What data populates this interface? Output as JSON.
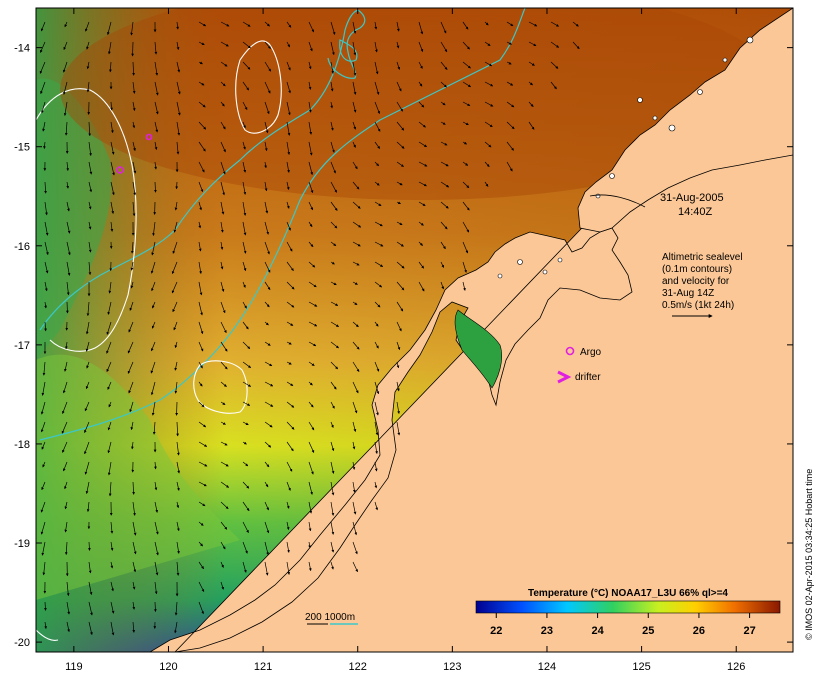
{
  "map": {
    "longitude_ticks": [
      "119",
      "120",
      "121",
      "122",
      "123",
      "124",
      "125",
      "126"
    ],
    "latitude_ticks": [
      "-14",
      "-15",
      "-16",
      "-17",
      "-18",
      "-19",
      "-20"
    ],
    "lon_range": [
      118.6,
      126.6
    ],
    "lat_range": [
      -20.1,
      -13.6
    ]
  },
  "annotations": {
    "date": "31-Aug-2005",
    "time": "14:40Z",
    "altimetry_lines": [
      "Altimetric sealevel",
      "(0.1m contours)",
      "and velocity for",
      "31-Aug 14Z",
      "0.5m/s (1kt 24h)"
    ],
    "argo_label": "Argo",
    "drifter_label": "drifter",
    "depth_contour_label": "200  1000m"
  },
  "colorbar": {
    "title": "Temperature (°C) NOAA17_L3U 66% ql>=4",
    "ticks": [
      "22",
      "23",
      "24",
      "25",
      "26",
      "27"
    ],
    "range": [
      21.6,
      27.6
    ]
  },
  "credit": "© IMOS 02-Apr-2015 03:34:25 Hobart time",
  "colors": {
    "land": "#fcc796",
    "sst_warm": "#b4520a",
    "sst_cool": "#2a9a3c",
    "contour": "#ffffff",
    "bathymetry": "#3cc8c8",
    "markers": "#e020e0"
  }
}
